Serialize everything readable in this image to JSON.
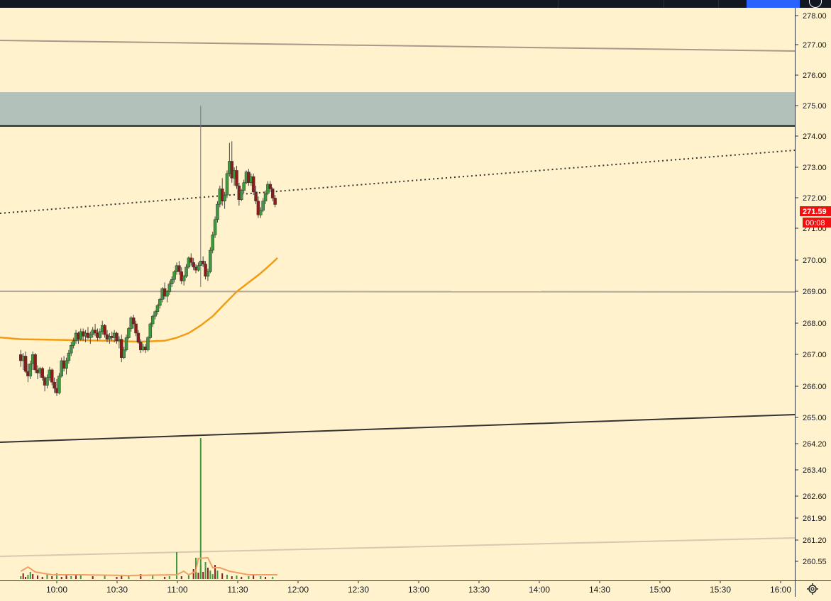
{
  "chart_data": {
    "type": "candlestick",
    "price_axis": {
      "ticks": [
        "278.00",
        "277.00",
        "276.00",
        "275.00",
        "274.00",
        "273.00",
        "272.00",
        "271.00",
        "270.00",
        "269.00",
        "268.00",
        "267.00",
        "266.00",
        "265.00",
        "264.20",
        "263.40",
        "262.60",
        "261.90",
        "261.20",
        "260.55"
      ]
    },
    "time_axis": {
      "ticks": [
        "10:00",
        "10:30",
        "11:00",
        "11:30",
        "12:00",
        "12:30",
        "13:00",
        "13:30",
        "14:00",
        "14:30",
        "15:00",
        "15:30",
        "16:00"
      ]
    },
    "last_price": {
      "label": "271.59",
      "countdown": "00:08"
    },
    "candles": [
      [
        9.7,
        266.7,
        266.85,
        266.3,
        266.5
      ],
      [
        9.72,
        266.5,
        266.75,
        266.2,
        266.65
      ],
      [
        9.74,
        266.65,
        266.8,
        266.1,
        266.15
      ],
      [
        9.76,
        266.15,
        266.4,
        265.8,
        266.0
      ],
      [
        9.78,
        266.0,
        266.5,
        265.9,
        266.4
      ],
      [
        9.8,
        266.4,
        266.8,
        266.2,
        266.7
      ],
      [
        9.82,
        266.7,
        266.75,
        266.1,
        266.2
      ],
      [
        9.84,
        266.2,
        266.35,
        265.9,
        266.1
      ],
      [
        9.86,
        266.1,
        266.3,
        265.95,
        266.25
      ],
      [
        9.88,
        266.25,
        266.3,
        265.85,
        265.95
      ],
      [
        9.9,
        265.95,
        266.0,
        265.5,
        265.7
      ],
      [
        9.92,
        265.7,
        266.05,
        265.6,
        265.95
      ],
      [
        9.94,
        265.95,
        266.3,
        265.85,
        266.2
      ],
      [
        9.96,
        266.2,
        266.25,
        265.7,
        265.8
      ],
      [
        9.98,
        265.8,
        265.95,
        265.45,
        265.6
      ],
      [
        10.0,
        265.6,
        265.9,
        265.35,
        265.45
      ],
      [
        10.02,
        265.45,
        266.1,
        265.4,
        266.0
      ],
      [
        10.04,
        266.0,
        266.6,
        265.95,
        266.5
      ],
      [
        10.06,
        266.5,
        266.65,
        266.15,
        266.25
      ],
      [
        10.08,
        266.25,
        266.6,
        266.05,
        266.5
      ],
      [
        10.1,
        266.5,
        266.85,
        266.4,
        266.75
      ],
      [
        10.12,
        266.75,
        267.1,
        266.65,
        267.0
      ],
      [
        10.14,
        267.0,
        267.25,
        266.9,
        267.15
      ],
      [
        10.16,
        267.15,
        267.5,
        267.05,
        267.4
      ],
      [
        10.18,
        267.4,
        267.45,
        267.05,
        267.2
      ],
      [
        10.2,
        267.2,
        267.55,
        267.15,
        267.45
      ],
      [
        10.22,
        267.45,
        267.55,
        267.15,
        267.3
      ],
      [
        10.24,
        267.3,
        267.5,
        267.1,
        267.4
      ],
      [
        10.26,
        267.4,
        267.6,
        267.2,
        267.25
      ],
      [
        10.28,
        267.25,
        267.45,
        267.05,
        267.35
      ],
      [
        10.3,
        267.35,
        267.6,
        267.25,
        267.5
      ],
      [
        10.32,
        267.5,
        267.7,
        267.3,
        267.4
      ],
      [
        10.34,
        267.4,
        267.55,
        267.15,
        267.25
      ],
      [
        10.36,
        267.25,
        267.55,
        267.2,
        267.45
      ],
      [
        10.38,
        267.45,
        267.8,
        267.35,
        267.65
      ],
      [
        10.4,
        267.65,
        267.7,
        267.25,
        267.35
      ],
      [
        10.42,
        267.35,
        267.5,
        267.1,
        267.2
      ],
      [
        10.44,
        267.2,
        267.4,
        267.05,
        267.3
      ],
      [
        10.46,
        267.3,
        267.45,
        267.15,
        267.25
      ],
      [
        10.48,
        267.25,
        267.5,
        267.1,
        267.4
      ],
      [
        10.5,
        267.4,
        267.45,
        267.05,
        267.15
      ],
      [
        10.52,
        267.15,
        267.3,
        266.9,
        267.2
      ],
      [
        10.54,
        267.2,
        267.35,
        266.45,
        266.6
      ],
      [
        10.56,
        266.6,
        266.95,
        266.55,
        266.85
      ],
      [
        10.58,
        266.85,
        267.35,
        266.8,
        267.25
      ],
      [
        10.6,
        267.25,
        267.6,
        267.2,
        267.55
      ],
      [
        10.62,
        267.55,
        267.95,
        267.45,
        267.9
      ],
      [
        10.64,
        267.9,
        268.0,
        267.55,
        267.7
      ],
      [
        10.66,
        267.7,
        267.8,
        267.3,
        267.4
      ],
      [
        10.68,
        267.4,
        267.5,
        267.05,
        267.1
      ],
      [
        10.7,
        267.1,
        267.2,
        266.75,
        266.85
      ],
      [
        10.72,
        266.85,
        267.05,
        266.8,
        266.95
      ],
      [
        10.74,
        266.95,
        267.05,
        266.75,
        266.85
      ],
      [
        10.76,
        266.85,
        267.3,
        266.8,
        267.25
      ],
      [
        10.78,
        267.25,
        267.75,
        267.2,
        267.7
      ],
      [
        10.8,
        267.7,
        268.0,
        267.6,
        267.95
      ],
      [
        10.82,
        267.95,
        268.15,
        267.85,
        268.1
      ],
      [
        10.84,
        268.1,
        268.35,
        268.0,
        268.3
      ],
      [
        10.86,
        268.3,
        268.55,
        268.2,
        268.5
      ],
      [
        10.88,
        268.5,
        268.9,
        268.4,
        268.85
      ],
      [
        10.9,
        268.85,
        269.05,
        268.5,
        268.6
      ],
      [
        10.92,
        268.6,
        268.8,
        268.4,
        268.75
      ],
      [
        10.94,
        268.75,
        269.1,
        268.65,
        269.0
      ],
      [
        10.96,
        269.0,
        269.25,
        268.9,
        269.15
      ],
      [
        10.98,
        269.15,
        269.45,
        269.05,
        269.4
      ],
      [
        11.0,
        269.4,
        269.7,
        269.3,
        269.6
      ],
      [
        11.02,
        269.6,
        269.75,
        269.3,
        269.4
      ],
      [
        11.04,
        269.4,
        269.55,
        269.0,
        269.1
      ],
      [
        11.06,
        269.1,
        269.3,
        268.95,
        269.25
      ],
      [
        11.08,
        269.25,
        269.65,
        269.2,
        269.55
      ],
      [
        11.1,
        269.55,
        269.9,
        269.5,
        269.85
      ],
      [
        11.12,
        269.85,
        270.0,
        269.6,
        269.7
      ],
      [
        11.14,
        269.7,
        269.85,
        269.45,
        269.55
      ],
      [
        11.16,
        269.55,
        269.65,
        269.35,
        269.45
      ],
      [
        11.18,
        269.45,
        269.7,
        269.4,
        269.6
      ],
      [
        11.2,
        269.6,
        274.8,
        268.9,
        269.75
      ],
      [
        11.22,
        269.75,
        269.9,
        269.55,
        269.65
      ],
      [
        11.24,
        269.65,
        269.75,
        269.15,
        269.25
      ],
      [
        11.26,
        269.25,
        269.5,
        269.1,
        269.4
      ],
      [
        11.28,
        269.4,
        270.2,
        269.35,
        270.1
      ],
      [
        11.3,
        270.1,
        270.7,
        270.0,
        270.6
      ],
      [
        11.32,
        270.6,
        271.2,
        270.5,
        271.1
      ],
      [
        11.34,
        271.1,
        271.7,
        271.0,
        271.6
      ],
      [
        11.36,
        271.6,
        272.2,
        271.5,
        272.1
      ],
      [
        11.38,
        272.1,
        272.45,
        271.55,
        271.7
      ],
      [
        11.4,
        271.7,
        272.0,
        271.45,
        271.9
      ],
      [
        11.42,
        271.9,
        272.7,
        271.8,
        272.6
      ],
      [
        11.44,
        272.6,
        273.6,
        272.5,
        273.0
      ],
      [
        11.46,
        273.0,
        273.65,
        272.3,
        272.45
      ],
      [
        11.48,
        272.45,
        272.8,
        272.2,
        272.7
      ],
      [
        11.5,
        272.7,
        272.85,
        272.1,
        272.2
      ],
      [
        11.52,
        272.2,
        272.3,
        271.55,
        271.75
      ],
      [
        11.54,
        271.75,
        272.1,
        271.7,
        272.05
      ],
      [
        11.56,
        272.05,
        272.4,
        271.95,
        272.3
      ],
      [
        11.58,
        272.3,
        272.7,
        272.25,
        272.65
      ],
      [
        11.6,
        272.65,
        272.75,
        272.2,
        272.3
      ],
      [
        11.62,
        272.3,
        272.6,
        272.2,
        272.5
      ],
      [
        11.64,
        272.5,
        272.6,
        271.9,
        272.0
      ],
      [
        11.66,
        272.0,
        272.2,
        271.6,
        271.7
      ],
      [
        11.68,
        271.7,
        271.85,
        271.15,
        271.25
      ],
      [
        11.7,
        271.25,
        271.5,
        271.15,
        271.4
      ],
      [
        11.72,
        271.4,
        271.8,
        271.35,
        271.7
      ],
      [
        11.74,
        271.7,
        272.05,
        271.6,
        271.95
      ],
      [
        11.76,
        271.95,
        272.35,
        271.9,
        272.25
      ],
      [
        11.78,
        272.25,
        272.35,
        272.0,
        272.1
      ],
      [
        11.8,
        272.1,
        272.15,
        271.7,
        271.8
      ],
      [
        11.82,
        271.8,
        271.9,
        271.5,
        271.59
      ]
    ],
    "moving_average": [
      [
        9.0,
        267.3
      ],
      [
        9.4,
        267.3
      ],
      [
        9.7,
        267.2
      ],
      [
        10.0,
        267.18
      ],
      [
        10.4,
        267.15
      ],
      [
        10.7,
        267.12
      ],
      [
        10.9,
        267.15
      ],
      [
        11.0,
        267.25
      ],
      [
        11.1,
        267.4
      ],
      [
        11.2,
        267.65
      ],
      [
        11.3,
        267.95
      ],
      [
        11.4,
        268.35
      ],
      [
        11.5,
        268.75
      ],
      [
        11.6,
        269.05
      ],
      [
        11.7,
        269.35
      ],
      [
        11.8,
        269.7
      ],
      [
        11.84,
        269.85
      ]
    ],
    "volume": [
      [
        9.7,
        1,
        0.0
      ],
      [
        9.72,
        0,
        0.0
      ],
      [
        9.74,
        0,
        1.0
      ],
      [
        9.76,
        1,
        0.0
      ],
      [
        9.78,
        1,
        0.0
      ],
      [
        9.8,
        0,
        0.0
      ],
      [
        9.84,
        0,
        0.0
      ],
      [
        9.88,
        0,
        0.0
      ],
      [
        9.92,
        1,
        0.0
      ],
      [
        9.96,
        0,
        0.0
      ],
      [
        10.0,
        1,
        0.0
      ],
      [
        10.04,
        0,
        0.0
      ],
      [
        10.08,
        0,
        0.0
      ],
      [
        10.12,
        1,
        0.0
      ],
      [
        10.16,
        0,
        0.0
      ],
      [
        10.2,
        1,
        0.0
      ],
      [
        10.3,
        0,
        0.0
      ],
      [
        10.4,
        1,
        0.0
      ],
      [
        10.5,
        0,
        0.0
      ],
      [
        10.54,
        0,
        0.0
      ],
      [
        10.6,
        1,
        0.0
      ],
      [
        10.7,
        0,
        0.0
      ],
      [
        10.8,
        1,
        0.0
      ],
      [
        10.9,
        0,
        0.0
      ],
      [
        10.94,
        1,
        0.0
      ],
      [
        11.0,
        1,
        0.0
      ],
      [
        11.04,
        0,
        0.0
      ],
      [
        11.1,
        1,
        0.0
      ],
      [
        11.14,
        0,
        0.0
      ],
      [
        11.16,
        1,
        0.0
      ],
      [
        11.18,
        0,
        0.0
      ],
      [
        11.2,
        1,
        0.0
      ],
      [
        11.22,
        0,
        0.0
      ],
      [
        11.24,
        1,
        0.0
      ],
      [
        11.26,
        0,
        0.0
      ],
      [
        11.28,
        1,
        0.0
      ],
      [
        11.3,
        1,
        0.0
      ],
      [
        11.32,
        0,
        0.0
      ],
      [
        11.34,
        1,
        0.0
      ],
      [
        11.38,
        0,
        0.0
      ],
      [
        11.42,
        1,
        0.0
      ],
      [
        11.46,
        0,
        0.0
      ],
      [
        11.5,
        1,
        0.0
      ],
      [
        11.54,
        0,
        0.0
      ],
      [
        11.6,
        1,
        0.0
      ],
      [
        11.64,
        0,
        0.0
      ],
      [
        11.7,
        1,
        0.0
      ],
      [
        11.74,
        0,
        0.0
      ],
      [
        11.8,
        1,
        0.0
      ]
    ],
    "colors": {
      "background": "#fff2cc",
      "up": "#3d9a3d",
      "down": "#8c1c1c",
      "wick": "#555555",
      "moving_average": "#f39c12",
      "volume_average": "#f0a060",
      "zone_fill": "#b2c2bb",
      "last_price_bg": "#f01010"
    },
    "grid": false
  }
}
